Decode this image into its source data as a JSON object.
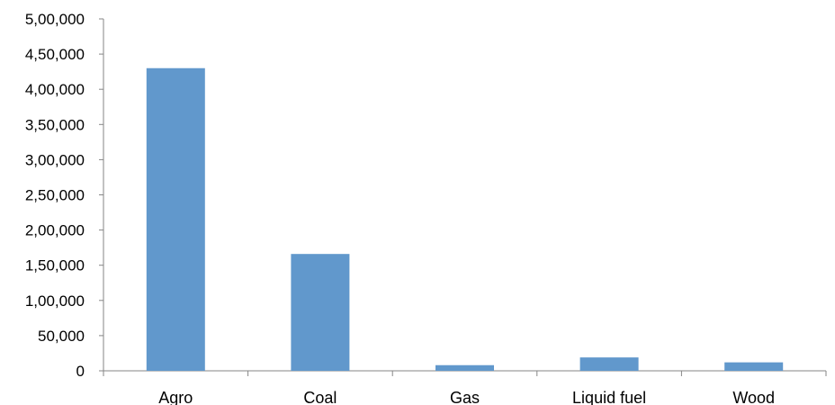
{
  "chart_data": {
    "type": "bar",
    "categories": [
      "Agro",
      "Coal",
      "Gas",
      "Liquid fuel",
      "Wood"
    ],
    "values": [
      430000,
      166000,
      8000,
      19000,
      12000
    ],
    "title": "",
    "xlabel": "",
    "ylabel": "",
    "ylim": [
      0,
      500000
    ],
    "yticks": [
      {
        "value": 0,
        "label": "0"
      },
      {
        "value": 50000,
        "label": "50,000"
      },
      {
        "value": 100000,
        "label": "1,00,000"
      },
      {
        "value": 150000,
        "label": "1,50,000"
      },
      {
        "value": 200000,
        "label": "2,00,000"
      },
      {
        "value": 250000,
        "label": "2,50,000"
      },
      {
        "value": 300000,
        "label": "3,00,000"
      },
      {
        "value": 350000,
        "label": "3,50,000"
      },
      {
        "value": 400000,
        "label": "4,00,000"
      },
      {
        "value": 450000,
        "label": "4,50,000"
      },
      {
        "value": 500000,
        "label": "5,00,000"
      }
    ],
    "grid": false,
    "legend": "none",
    "bar_color": "#6198cc",
    "axis_color": "#868686"
  }
}
